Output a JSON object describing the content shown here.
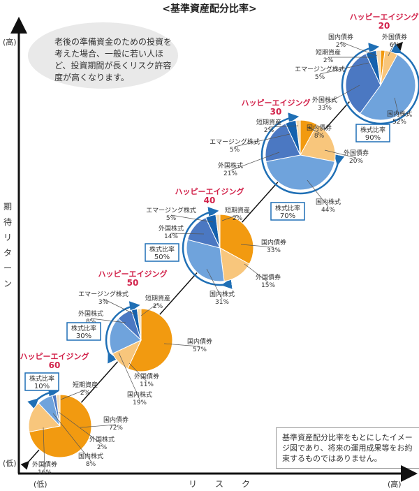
{
  "chart_data": {
    "type": "pie",
    "title": "<基準資産配分比率>",
    "annotation": "老後の準備資金のための投資を考えた場合、一般に若い人ほど、投資期間が長くリスク許容度が高くなります。",
    "ylabel": "期待リターン",
    "xlabel": "リスク",
    "y_high": "(高)",
    "y_low": "(低)",
    "x_low": "(低)",
    "x_high": "(高)",
    "note": "基準資産配分比率をもとにしたイメージ図であり、将来の運用成果等をお約束するものではありません。",
    "equity_ratio_label": "株式比率",
    "colors": {
      "国内債券": "#f29a10",
      "外国債券": "#f8c67c",
      "国内株式": "#6fa3dc",
      "外国株式": "#4b78c2",
      "エマージング株式": "#1461ae",
      "短期資産": "#f7dcb0"
    },
    "title_color": "#d2234b",
    "series": [
      {
        "name": "ハッピーエイジング",
        "number": "20",
        "equity_ratio": "90%",
        "slices": [
          {
            "label": "国内債券",
            "value": 2
          },
          {
            "label": "外国債券",
            "value": 6
          },
          {
            "label": "国内株式",
            "value": 52
          },
          {
            "label": "外国株式",
            "value": 33
          },
          {
            "label": "エマージング株式",
            "value": 5
          },
          {
            "label": "短期資産",
            "value": 2
          }
        ]
      },
      {
        "name": "ハッピーエイジング",
        "number": "30",
        "equity_ratio": "70%",
        "slices": [
          {
            "label": "国内債券",
            "value": 8
          },
          {
            "label": "外国債券",
            "value": 20
          },
          {
            "label": "国内株式",
            "value": 44
          },
          {
            "label": "外国株式",
            "value": 21
          },
          {
            "label": "エマージング株式",
            "value": 5
          },
          {
            "label": "短期資産",
            "value": 2
          }
        ]
      },
      {
        "name": "ハッピーエイジング",
        "number": "40",
        "equity_ratio": "50%",
        "slices": [
          {
            "label": "国内債券",
            "value": 33
          },
          {
            "label": "外国債券",
            "value": 15
          },
          {
            "label": "国内株式",
            "value": 31
          },
          {
            "label": "外国株式",
            "value": 14
          },
          {
            "label": "エマージング株式",
            "value": 5
          },
          {
            "label": "短期資産",
            "value": 2
          }
        ]
      },
      {
        "name": "ハッピーエイジング",
        "number": "50",
        "equity_ratio": "30%",
        "slices": [
          {
            "label": "国内債券",
            "value": 57
          },
          {
            "label": "外国債券",
            "value": 11
          },
          {
            "label": "国内株式",
            "value": 19
          },
          {
            "label": "外国株式",
            "value": 8
          },
          {
            "label": "エマージング株式",
            "value": 3
          },
          {
            "label": "短期資産",
            "value": 2
          }
        ]
      },
      {
        "name": "ハッピーエイジング",
        "number": "60",
        "equity_ratio": "10%",
        "slices": [
          {
            "label": "国内債券",
            "value": 72
          },
          {
            "label": "外国債券",
            "value": 16
          },
          {
            "label": "国内株式",
            "value": 8
          },
          {
            "label": "外国株式",
            "value": 2
          },
          {
            "label": "短期資産",
            "value": 2
          }
        ]
      }
    ]
  }
}
